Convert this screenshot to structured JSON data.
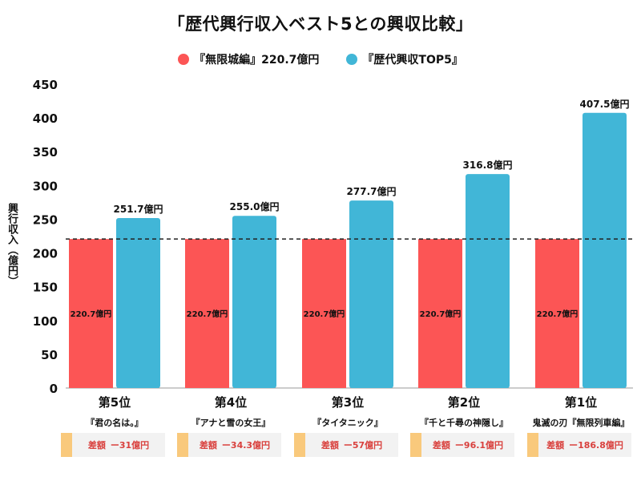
{
  "chart_data": {
    "type": "bar",
    "title": "「歴代興行収入ベスト5との興収比較」",
    "ylabel": "興行収入（億円）",
    "xlabel": "",
    "ylim": [
      0,
      450
    ],
    "yticks": [
      0,
      50,
      100,
      150,
      200,
      250,
      300,
      350,
      400,
      450
    ],
    "categories": [
      "第5位",
      "第4位",
      "第3位",
      "第2位",
      "第1位"
    ],
    "movies": [
      "『君の名は。』",
      "『アナと雪の女王』",
      "『タイタニック』",
      "『千と千尋の神隠し』",
      "鬼滅の刃『無限列車編』"
    ],
    "series": [
      {
        "name": "『無限城編』220.7億円",
        "color": "#fc5555",
        "values": [
          220.7,
          220.7,
          220.7,
          220.7,
          220.7
        ],
        "labels": [
          "220.7億円",
          "220.7億円",
          "220.7億円",
          "220.7億円",
          "220.7億円"
        ]
      },
      {
        "name": "『歴代興収TOP5』",
        "color": "#41b6d7",
        "values": [
          251.7,
          255.0,
          277.7,
          316.8,
          407.5
        ],
        "labels": [
          "251.7億円",
          "255.0億円",
          "277.7億円",
          "316.8億円",
          "407.5億円"
        ]
      }
    ],
    "reference_line": 220.7,
    "diff_prefix": "差額",
    "differences": [
      "ー31億円",
      "ー34.3億円",
      "ー57億円",
      "ー96.1億円",
      "ー186.8億円"
    ],
    "legend_position": "top-center",
    "grid": false
  }
}
